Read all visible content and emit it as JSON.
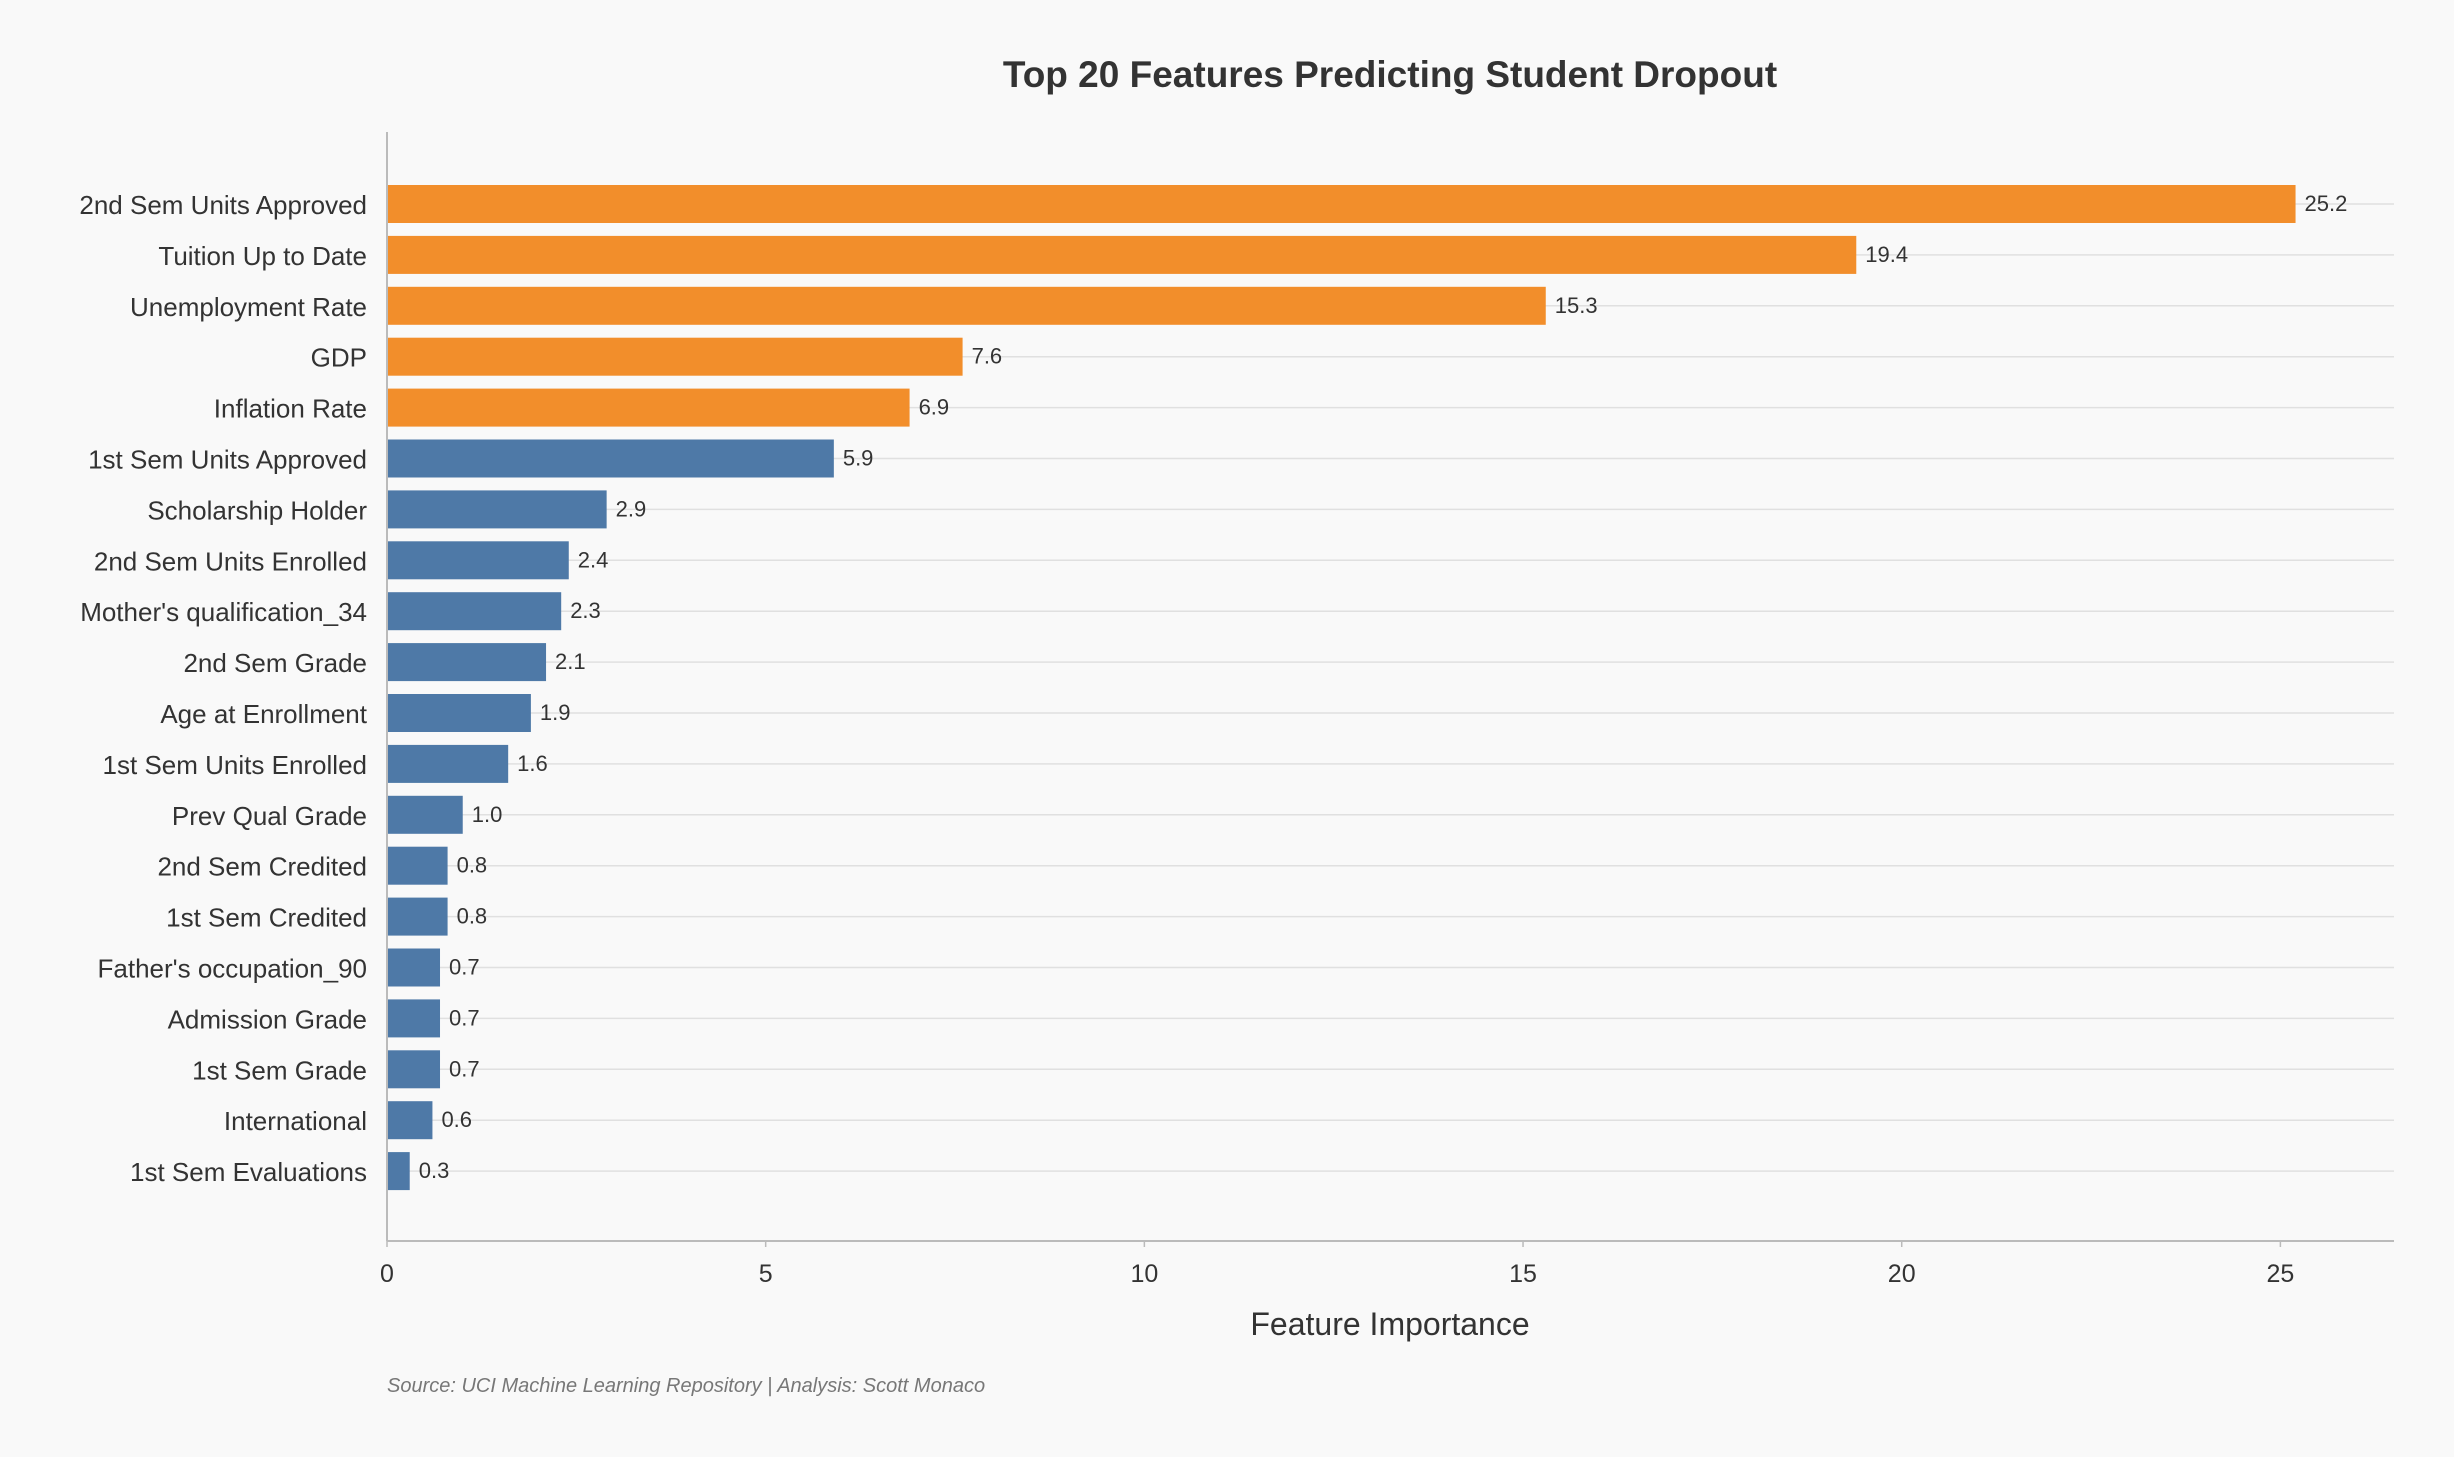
{
  "chart_data": {
    "type": "bar",
    "orientation": "horizontal",
    "title": "Top 20 Features Predicting Student Dropout",
    "xlabel": "Feature Importance",
    "ylabel": "",
    "xlim": [
      0,
      26.5
    ],
    "xticks": [
      0,
      5,
      10,
      15,
      20,
      25
    ],
    "grid": "horizontal",
    "legend": "none",
    "categories": [
      "2nd Sem Units Approved",
      "Tuition Up to Date",
      "Unemployment Rate",
      "GDP",
      "Inflation Rate",
      "1st Sem Units Approved",
      "Scholarship Holder",
      "2nd Sem Units Enrolled",
      "Mother's qualification_34",
      "2nd Sem Grade",
      "Age at Enrollment",
      "1st Sem Units Enrolled",
      "Prev Qual Grade",
      "2nd Sem Credited",
      "1st Sem Credited",
      "Father's occupation_90",
      "Admission Grade",
      "1st Sem Grade",
      "International",
      "1st Sem Evaluations"
    ],
    "values": [
      25.2,
      19.4,
      15.3,
      7.6,
      6.9,
      5.9,
      2.9,
      2.4,
      2.3,
      2.1,
      1.9,
      1.6,
      1.0,
      0.8,
      0.8,
      0.7,
      0.7,
      0.7,
      0.6,
      0.3
    ],
    "value_labels": [
      "25.2",
      "19.4",
      "15.3",
      "7.6",
      "6.9",
      "5.9",
      "2.9",
      "2.4",
      "2.3",
      "2.1",
      "1.9",
      "1.6",
      "1.0",
      "0.8",
      "0.8",
      "0.7",
      "0.7",
      "0.7",
      "0.6",
      "0.3"
    ],
    "highlight_count": 5,
    "colors": {
      "highlight": "#f28e2b",
      "default": "#4e79a7",
      "background": "#f9f9f9",
      "grid": "#e0e0e0",
      "axis": "#bbbbbb",
      "text": "#333333",
      "source": "#777777"
    }
  },
  "footer": {
    "source": "Source: UCI Machine Learning Repository | Analysis: Scott Monaco"
  }
}
